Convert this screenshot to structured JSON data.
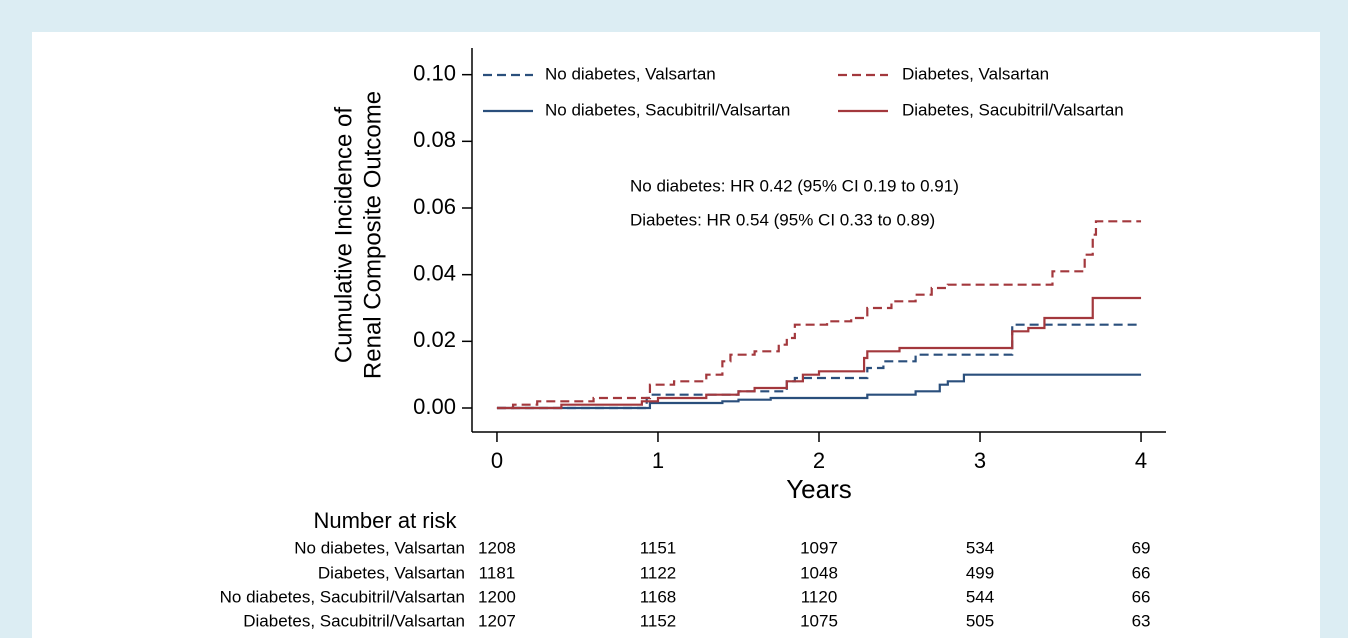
{
  "chart_data": {
    "type": "step",
    "drawstyle": "steps-post",
    "ylabel": [
      "Cumulative Incidence of",
      "Renal Composite Outcome"
    ],
    "xlabel": "Years",
    "xlim": [
      -0.155,
      4.155
    ],
    "ylim": [
      -0.0072,
      0.108
    ],
    "xticks": [
      0,
      1,
      2,
      3,
      4
    ],
    "yticks": [
      {
        "value": 0,
        "label": "0.00"
      },
      {
        "value": 0.02,
        "label": "0.02"
      },
      {
        "value": 0.04,
        "label": "0.04"
      },
      {
        "value": 0.06,
        "label": "0.06"
      },
      {
        "value": 0.08,
        "label": "0.08"
      },
      {
        "value": 0.1,
        "label": "0.10"
      }
    ],
    "annotations": [
      "No diabetes: HR 0.42 (95% CI 0.19 to 0.91)",
      "Diabetes: HR 0.54 (95% CI 0.33 to 0.89)"
    ],
    "series": [
      {
        "name": "No diabetes, Valsartan",
        "color": "#2a4f7c",
        "linestyle": "dashed",
        "x": [
          0,
          0.93,
          0.95,
          1.5,
          1.8,
          1.85,
          2.3,
          2.4,
          2.6,
          3.2,
          4
        ],
        "values": [
          0,
          0.003,
          0.004,
          0.005,
          0.008,
          0.009,
          0.012,
          0.014,
          0.016,
          0.025,
          0.025
        ]
      },
      {
        "name": "Diabetes, Valsartan",
        "color": "#a3383d",
        "linestyle": "dashed",
        "x": [
          0,
          0.1,
          0.25,
          0.6,
          0.95,
          1.1,
          1.3,
          1.4,
          1.45,
          1.6,
          1.75,
          1.8,
          1.85,
          2.05,
          2.2,
          2.3,
          2.45,
          2.6,
          2.7,
          2.8,
          3.45,
          3.65,
          3.7,
          3.72,
          4
        ],
        "values": [
          0,
          0.001,
          0.002,
          0.003,
          0.007,
          0.008,
          0.01,
          0.014,
          0.016,
          0.017,
          0.019,
          0.021,
          0.025,
          0.026,
          0.027,
          0.03,
          0.032,
          0.034,
          0.036,
          0.037,
          0.041,
          0.046,
          0.052,
          0.056,
          0.056
        ]
      },
      {
        "name": "No diabetes, Sacubitril/Valsartan",
        "color": "#2a4f7c",
        "linestyle": "solid",
        "x": [
          0,
          0.95,
          1.4,
          1.5,
          1.7,
          2.3,
          2.6,
          2.75,
          2.8,
          2.9,
          4
        ],
        "values": [
          0,
          0.0015,
          0.002,
          0.0025,
          0.003,
          0.004,
          0.005,
          0.007,
          0.008,
          0.01,
          0.01
        ]
      },
      {
        "name": "Diabetes, Sacubitril/Valsartan",
        "color": "#a3383d",
        "linestyle": "solid",
        "x": [
          0,
          0.4,
          0.9,
          1.0,
          1.3,
          1.5,
          1.6,
          1.8,
          1.9,
          2.0,
          2.28,
          2.3,
          2.5,
          3.2,
          3.3,
          3.4,
          3.7,
          4
        ],
        "values": [
          0,
          0.001,
          0.002,
          0.003,
          0.004,
          0.005,
          0.006,
          0.008,
          0.01,
          0.011,
          0.015,
          0.017,
          0.018,
          0.023,
          0.024,
          0.027,
          0.033,
          0.033
        ]
      }
    ],
    "risk_table": {
      "title": "Number at risk",
      "rows": [
        {
          "label": "No diabetes, Valsartan",
          "values": [
            1208,
            1151,
            1097,
            534,
            69
          ]
        },
        {
          "label": "Diabetes, Valsartan",
          "values": [
            1181,
            1122,
            1048,
            499,
            66
          ]
        },
        {
          "label": "No diabetes, Sacubitril/Valsartan",
          "values": [
            1200,
            1168,
            1120,
            544,
            66
          ]
        },
        {
          "label": "Diabetes, Sacubitril/Valsartan",
          "values": [
            1207,
            1152,
            1075,
            505,
            63
          ]
        }
      ]
    }
  }
}
